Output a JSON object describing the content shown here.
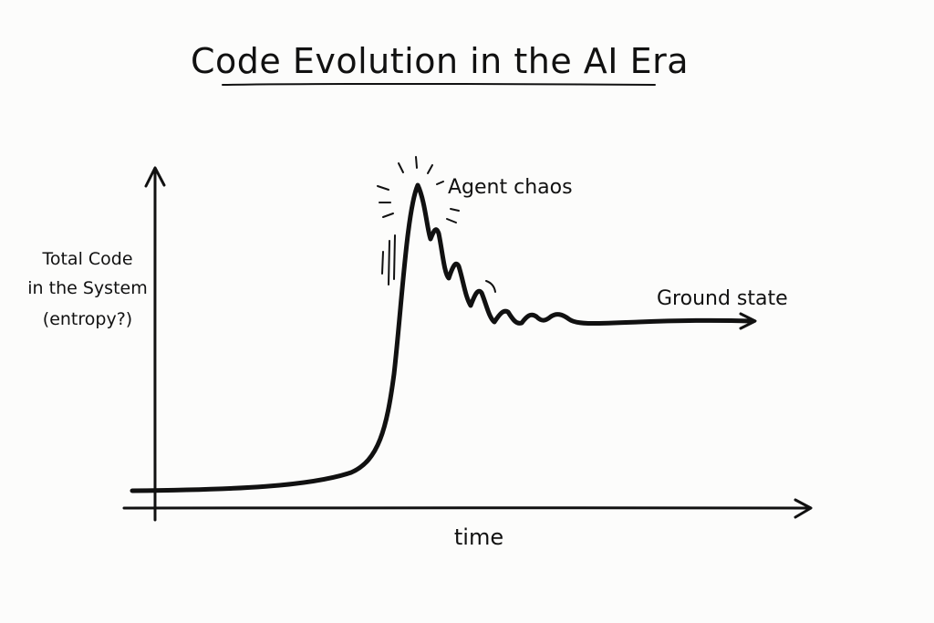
{
  "title": "Code Evolution in the AI Era",
  "ylabel": {
    "line1": "Total Code",
    "line2": "in the System",
    "line3": "(entropy?)"
  },
  "xlabel": "time",
  "annotations": {
    "peak": "Agent chaos",
    "end": "Ground state"
  },
  "colors": {
    "ink": "#111111",
    "paper": "#fcfcfb"
  }
}
